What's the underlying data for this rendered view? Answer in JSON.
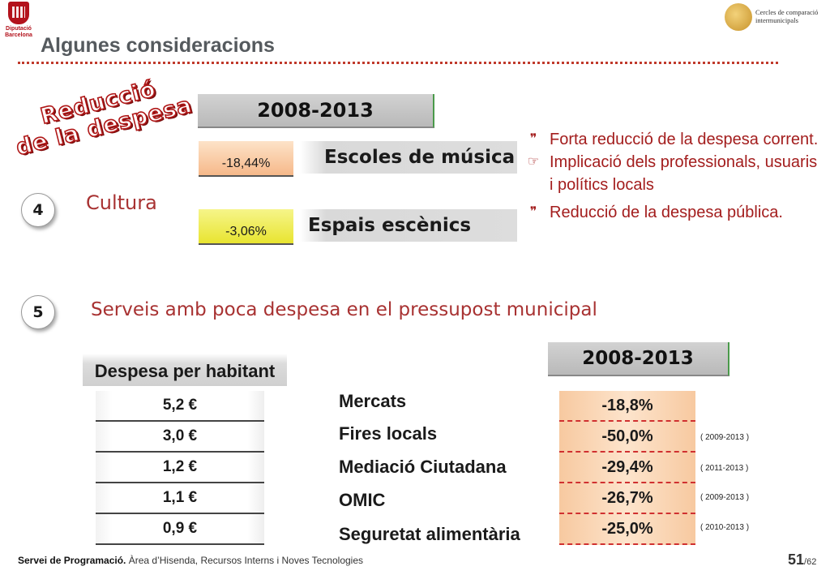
{
  "header": {
    "title": "Algunes consideracions",
    "logo_left": "Diputació Barcelona",
    "logo_right": "Cercles de comparació intermunicipals"
  },
  "stamp": {
    "line1": "Reducció",
    "line2": "de la despesa"
  },
  "cultura": {
    "number": "4",
    "label": "Cultura",
    "period": "2008-2013",
    "rows": [
      {
        "pct": "-18,44%",
        "label": "Escoles de música"
      },
      {
        "pct": "-3,06%",
        "label": "Espais escènics"
      }
    ],
    "bullets": [
      "Forta reducció de la despesa corrent.",
      "Implicació dels professionals, usuaris i polítics locals",
      "Reducció de la despesa pública."
    ]
  },
  "section5": {
    "number": "5",
    "label": "Serveis amb poca despesa en el pressupost municipal",
    "table_header": "Despesa per habitant",
    "period": "2008-2013",
    "rows": [
      {
        "value": "5,2 €",
        "service": "Mercats",
        "change": "-18,8%",
        "range": ""
      },
      {
        "value": "3,0 €",
        "service": "Fires locals",
        "change": "-50,0%",
        "range": "( 2009-2013 )"
      },
      {
        "value": "1,2 €",
        "service": "Mediació Ciutadana",
        "change": "-29,4%",
        "range": "( 2011-2013 )"
      },
      {
        "value": "1,1 €",
        "service": "OMIC",
        "change": "-26,7%",
        "range": "( 2009-2013 )"
      },
      {
        "value": "0,9 €",
        "service": "Seguretat alimentària",
        "change": "-25,0%",
        "range": "( 2010-2013 )"
      }
    ]
  },
  "footer": {
    "dept": "Servei de Programació.",
    "rest": " Àrea d’Hisenda, Recursos Interns i Noves Tecnologies",
    "page": "51",
    "total": "/62"
  }
}
